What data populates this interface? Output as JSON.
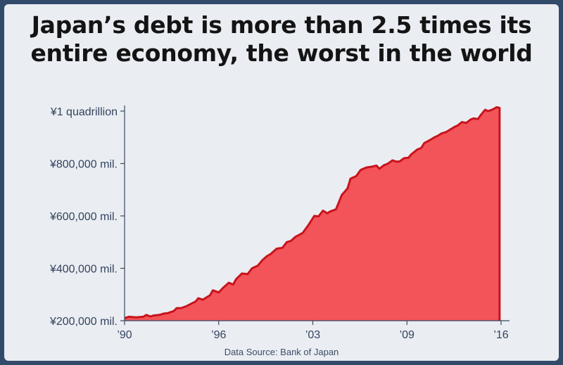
{
  "title_lines": [
    "Japan’s debt is more than 2.5 times its",
    "entire economy, the worst in the world"
  ],
  "source": "Data Source: Bank of Japan",
  "colors": {
    "frame": "#334b6b",
    "panel": "#eaedf2",
    "area_fill": "#f25459",
    "area_line": "#c8141c",
    "axis": "#3a4a63"
  },
  "chart_data": {
    "type": "area",
    "title": "Japan’s debt is more than 2.5 times its entire economy, the worst in the world",
    "ylim": [
      200000,
      1000000
    ],
    "xlim": [
      1990,
      2016
    ],
    "y_ticks": [
      {
        "value": 200000,
        "label": "¥200,000 mil."
      },
      {
        "value": 400000,
        "label": "¥400,000 mil."
      },
      {
        "value": 600000,
        "label": "¥600,000 mil."
      },
      {
        "value": 800000,
        "label": "¥800,000 mil."
      },
      {
        "value": 1000000,
        "label": "¥1 quadrillion"
      }
    ],
    "x_ticks": [
      {
        "value": 1990,
        "label": "’90"
      },
      {
        "value": 1996.5,
        "label": "’96"
      },
      {
        "value": 2003,
        "label": "’03"
      },
      {
        "value": 2009.5,
        "label": "’09"
      },
      {
        "value": 2016,
        "label": "’16"
      }
    ],
    "grid": false,
    "series": [
      {
        "x": [
          1990.0,
          1990.3,
          1990.8,
          1991.3,
          1991.5,
          1991.8,
          1992.0,
          1992.4,
          1992.7,
          1993.0,
          1993.4,
          1993.6,
          1993.9,
          1994.3,
          1994.6,
          1994.9,
          1995.1,
          1995.4,
          1995.9,
          1996.1,
          1996.5,
          1996.8,
          1997.2,
          1997.5,
          1997.7,
          1998.1,
          1998.5,
          1998.8,
          1999.2,
          1999.5,
          1999.8,
          2000.1,
          2000.5,
          2000.9,
          2001.2,
          2001.5,
          2001.8,
          2002.3,
          2002.7,
          2003.1,
          2003.4,
          2003.7,
          2004.0,
          2004.2,
          2004.6,
          2005.0,
          2005.4,
          2005.6,
          2006.0,
          2006.3,
          2006.7,
          2007.0,
          2007.4,
          2007.6,
          2007.9,
          2008.2,
          2008.5,
          2008.8,
          2009.0,
          2009.3,
          2009.6,
          2009.8,
          2010.2,
          2010.5,
          2010.7,
          2011.1,
          2011.4,
          2011.6,
          2011.9,
          2012.2,
          2012.5,
          2012.8,
          2013.0,
          2013.3,
          2013.6,
          2013.9,
          2014.1,
          2014.4,
          2014.6,
          2014.9,
          2015.1,
          2015.4,
          2015.7,
          2015.9
        ],
        "values": [
          210000,
          215000,
          213000,
          215000,
          222000,
          216000,
          220000,
          222000,
          227000,
          229000,
          237000,
          248000,
          248000,
          256000,
          265000,
          273000,
          286000,
          280000,
          297000,
          316000,
          308000,
          325000,
          345000,
          338000,
          358000,
          380000,
          378000,
          400000,
          410000,
          430000,
          445000,
          455000,
          475000,
          478000,
          500000,
          505000,
          520000,
          535000,
          565000,
          600000,
          598000,
          620000,
          610000,
          617000,
          625000,
          680000,
          705000,
          742000,
          752000,
          775000,
          785000,
          787000,
          792000,
          780000,
          793000,
          800000,
          812000,
          807000,
          808000,
          820000,
          822000,
          835000,
          853000,
          860000,
          878000,
          890000,
          900000,
          905000,
          915000,
          920000,
          930000,
          940000,
          945000,
          958000,
          955000,
          968000,
          972000,
          970000,
          985000,
          1005000,
          1000000,
          1006000,
          1015000,
          1012000
        ]
      }
    ]
  }
}
